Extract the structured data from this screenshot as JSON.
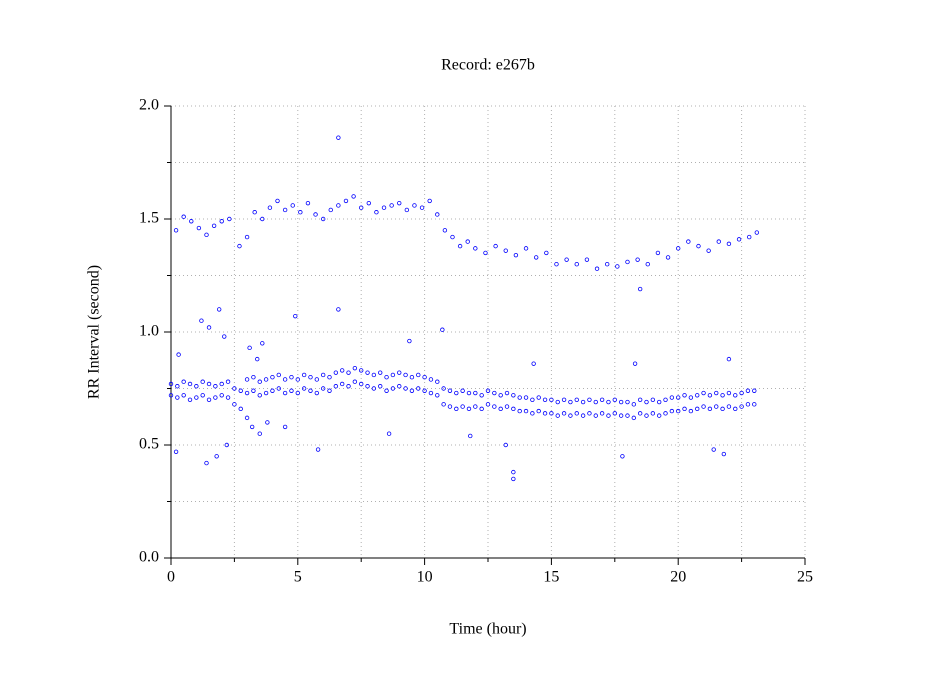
{
  "chart_data": {
    "type": "scatter",
    "title": "Record:  e267b",
    "x_label": "Time (hour)",
    "y_label": "RR Interval (second)",
    "xlim": [
      0,
      25
    ],
    "ylim": [
      0,
      2
    ],
    "xticks": [
      0,
      5,
      10,
      15,
      20,
      25
    ],
    "xminorticks": [
      2.5,
      7.5,
      12.5,
      17.5,
      22.5
    ],
    "yticks": [
      {
        "value": 0,
        "label": "0.0"
      },
      {
        "value": 0.5,
        "label": "0.5"
      },
      {
        "value": 1,
        "label": "1.0"
      },
      {
        "value": 1.5,
        "label": "1.5"
      },
      {
        "value": 2,
        "label": "2.0"
      }
    ],
    "yminorticks": [
      0.25,
      0.75,
      1.25,
      1.75
    ],
    "grid": true,
    "series": [
      {
        "color": "#0000ff",
        "x": [
          0,
          0.25,
          0.5,
          0.75,
          1,
          1.25,
          1.5,
          1.75,
          2,
          2.25,
          2.5,
          2.75,
          3,
          3.25,
          3.5,
          3.75,
          4,
          4.25,
          4.5,
          4.75,
          5,
          5.25,
          5.5,
          5.75,
          6,
          6.25,
          6.5,
          6.75,
          7,
          7.25,
          7.5,
          7.75,
          8,
          8.25,
          8.5,
          8.75,
          9,
          9.25,
          9.5,
          9.75,
          10,
          10.25,
          10.5,
          10.75,
          11,
          11.25,
          11.5,
          11.75,
          12,
          12.25,
          12.5,
          12.75,
          13,
          13.25,
          13.5,
          13.75,
          14,
          14.25,
          14.5,
          14.75,
          15,
          15.25,
          15.5,
          15.75,
          16,
          16.25,
          16.5,
          16.75,
          17,
          17.25,
          17.5,
          17.75,
          18,
          18.25,
          18.5,
          18.75,
          19,
          19.25,
          19.5,
          19.75,
          20,
          20.25,
          20.5,
          20.75,
          21,
          21.25,
          21.5,
          21.75,
          22,
          22.25,
          22.5,
          22.75,
          23
        ],
        "values": [
          0.77,
          0.76,
          0.78,
          0.77,
          0.76,
          0.78,
          0.77,
          0.76,
          0.77,
          0.78,
          0.75,
          0.74,
          0.79,
          0.8,
          0.78,
          0.79,
          0.8,
          0.81,
          0.79,
          0.8,
          0.79,
          0.81,
          0.8,
          0.79,
          0.81,
          0.8,
          0.82,
          0.83,
          0.82,
          0.84,
          0.83,
          0.82,
          0.81,
          0.82,
          0.8,
          0.81,
          0.82,
          0.81,
          0.8,
          0.81,
          0.8,
          0.79,
          0.78,
          0.75,
          0.74,
          0.73,
          0.74,
          0.73,
          0.73,
          0.72,
          0.74,
          0.73,
          0.72,
          0.73,
          0.72,
          0.71,
          0.71,
          0.7,
          0.71,
          0.7,
          0.7,
          0.69,
          0.7,
          0.69,
          0.7,
          0.69,
          0.7,
          0.69,
          0.7,
          0.69,
          0.7,
          0.69,
          0.69,
          0.68,
          0.7,
          0.69,
          0.7,
          0.69,
          0.7,
          0.71,
          0.71,
          0.72,
          0.71,
          0.72,
          0.73,
          0.72,
          0.73,
          0.72,
          0.73,
          0.72,
          0.73,
          0.74,
          0.74
        ]
      },
      {
        "color": "#0000ff",
        "x": [
          0,
          0.25,
          0.5,
          0.75,
          1,
          1.25,
          1.5,
          1.75,
          2,
          2.25,
          2.5,
          2.75,
          3,
          3.25,
          3.5,
          3.75,
          4,
          4.25,
          4.5,
          4.75,
          5,
          5.25,
          5.5,
          5.75,
          6,
          6.25,
          6.5,
          6.75,
          7,
          7.25,
          7.5,
          7.75,
          8,
          8.25,
          8.5,
          8.75,
          9,
          9.25,
          9.5,
          9.75,
          10,
          10.25,
          10.5,
          10.75,
          11,
          11.25,
          11.5,
          11.75,
          12,
          12.25,
          12.5,
          12.75,
          13,
          13.25,
          13.5,
          13.75,
          14,
          14.25,
          14.5,
          14.75,
          15,
          15.25,
          15.5,
          15.75,
          16,
          16.25,
          16.5,
          16.75,
          17,
          17.25,
          17.5,
          17.75,
          18,
          18.25,
          18.5,
          18.75,
          19,
          19.25,
          19.5,
          19.75,
          20,
          20.25,
          20.5,
          20.75,
          21,
          21.25,
          21.5,
          21.75,
          22,
          22.25,
          22.5,
          22.75,
          23
        ],
        "values": [
          0.72,
          0.71,
          0.72,
          0.7,
          0.71,
          0.72,
          0.7,
          0.71,
          0.72,
          0.71,
          0.68,
          0.66,
          0.73,
          0.74,
          0.72,
          0.73,
          0.74,
          0.75,
          0.73,
          0.74,
          0.73,
          0.75,
          0.74,
          0.73,
          0.75,
          0.74,
          0.76,
          0.77,
          0.76,
          0.78,
          0.77,
          0.76,
          0.75,
          0.76,
          0.74,
          0.75,
          0.76,
          0.75,
          0.74,
          0.75,
          0.74,
          0.73,
          0.72,
          0.68,
          0.67,
          0.66,
          0.67,
          0.66,
          0.67,
          0.66,
          0.68,
          0.67,
          0.66,
          0.67,
          0.66,
          0.65,
          0.65,
          0.64,
          0.65,
          0.64,
          0.64,
          0.63,
          0.64,
          0.63,
          0.64,
          0.63,
          0.64,
          0.63,
          0.64,
          0.63,
          0.64,
          0.63,
          0.63,
          0.62,
          0.64,
          0.63,
          0.64,
          0.63,
          0.64,
          0.65,
          0.65,
          0.66,
          0.65,
          0.66,
          0.67,
          0.66,
          0.67,
          0.66,
          0.67,
          0.66,
          0.67,
          0.68,
          0.68
        ]
      },
      {
        "color": "#0000ff",
        "x": [
          0.2,
          0.5,
          0.8,
          1.1,
          1.4,
          1.7,
          2.0,
          2.3,
          2.7,
          3.0,
          3.3,
          3.6,
          3.9,
          4.2,
          4.5,
          4.8,
          5.1,
          5.4,
          5.7,
          6.0,
          6.3,
          6.6,
          6.9,
          7.2,
          7.5,
          7.8,
          8.1,
          8.4,
          8.7,
          9.0,
          9.3,
          9.6,
          9.9,
          10.2,
          10.5,
          10.8,
          11.1,
          11.4,
          11.7,
          12.0,
          12.4,
          12.8,
          13.2,
          13.6,
          14.0,
          14.4,
          14.8,
          15.2,
          15.6,
          16.0,
          16.4,
          16.8,
          17.2,
          17.6,
          18.0,
          18.4,
          18.8,
          19.2,
          19.6,
          20.0,
          20.4,
          20.8,
          21.2,
          21.6,
          22.0,
          22.4,
          22.8,
          23.1
        ],
        "values": [
          1.45,
          1.51,
          1.49,
          1.46,
          1.43,
          1.47,
          1.49,
          1.5,
          1.38,
          1.42,
          1.53,
          1.5,
          1.55,
          1.58,
          1.54,
          1.56,
          1.53,
          1.57,
          1.52,
          1.5,
          1.54,
          1.56,
          1.58,
          1.6,
          1.55,
          1.57,
          1.53,
          1.55,
          1.56,
          1.57,
          1.54,
          1.56,
          1.55,
          1.58,
          1.52,
          1.45,
          1.42,
          1.38,
          1.4,
          1.37,
          1.35,
          1.38,
          1.36,
          1.34,
          1.37,
          1.33,
          1.35,
          1.3,
          1.32,
          1.3,
          1.32,
          1.28,
          1.3,
          1.29,
          1.31,
          1.32,
          1.3,
          1.35,
          1.33,
          1.37,
          1.4,
          1.38,
          1.36,
          1.4,
          1.39,
          1.41,
          1.42,
          1.44
        ]
      },
      {
        "color": "#0000ff",
        "x": [
          0.3,
          1.2,
          1.5,
          1.9,
          2.1,
          1.4,
          1.8,
          0.2,
          3.1,
          3.4,
          3.6,
          3.2,
          3.5,
          4.9,
          5.8,
          6.6,
          6.6,
          9.4,
          10.7,
          13.5,
          13.5,
          13.2,
          14.3,
          17.8,
          18.3,
          21.4,
          21.8,
          22.0,
          18.5,
          3.0,
          3.8,
          2.2,
          4.5,
          8.6,
          11.8
        ],
        "values": [
          0.9,
          1.05,
          1.02,
          1.1,
          0.98,
          0.42,
          0.45,
          0.47,
          0.93,
          0.88,
          0.95,
          0.58,
          0.55,
          1.07,
          0.48,
          1.86,
          1.1,
          0.96,
          1.01,
          0.38,
          0.35,
          0.5,
          0.86,
          0.45,
          0.86,
          0.48,
          0.46,
          0.88,
          1.19,
          0.62,
          0.6,
          0.5,
          0.58,
          0.55,
          0.54
        ]
      }
    ]
  }
}
